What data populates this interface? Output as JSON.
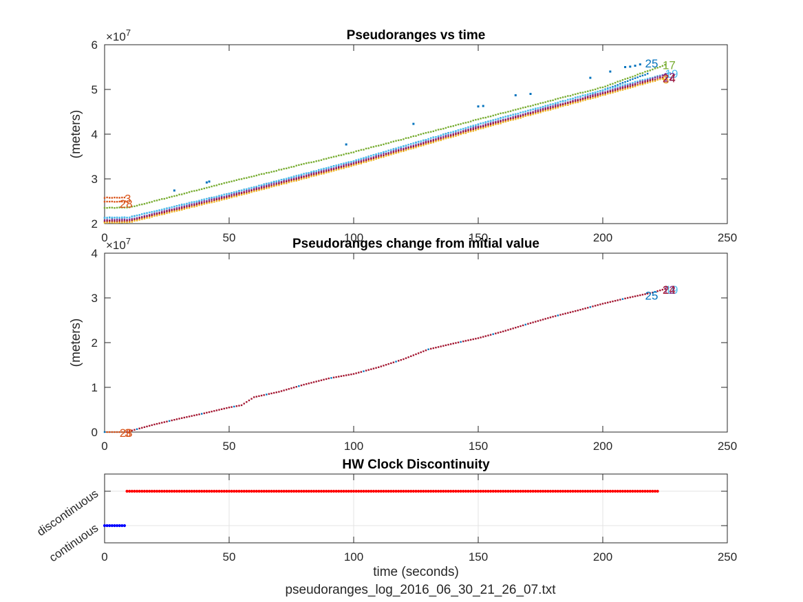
{
  "chart_data": [
    {
      "id": "top",
      "type": "scatter",
      "title": "Pseudoranges vs time",
      "xlabel": "",
      "ylabel": "(meters)",
      "y_exponent": "×10",
      "y_exponent_power": "7",
      "xlim": [
        0,
        250
      ],
      "ylim": [
        2,
        6
      ],
      "xticks": [
        0,
        50,
        100,
        150,
        200,
        250
      ],
      "yticks": [
        2,
        3,
        4,
        5,
        6
      ],
      "grid": false,
      "series": [
        {
          "name": "3",
          "color": "#D95319",
          "t_start": 0,
          "t_end": 8,
          "segments": [
            [
              0,
              2.58
            ],
            [
              8,
              2.58
            ]
          ]
        },
        {
          "name": "28",
          "color": "#D95319",
          "t_start": 0,
          "t_end": 8,
          "segments": [
            [
              0,
              2.49
            ],
            [
              8,
              2.49
            ]
          ]
        },
        {
          "name": "17",
          "color": "#77AC30",
          "t_start": 0,
          "t_end": 225,
          "segments": [
            [
              0,
              2.35
            ],
            [
              10,
              2.36
            ],
            [
              50,
              2.93
            ],
            [
              100,
              3.6
            ],
            [
              150,
              4.33
            ],
            [
              200,
              5.05
            ],
            [
              225,
              5.55
            ]
          ]
        },
        {
          "name": "25",
          "color": "#0072BD",
          "t_start": 0,
          "t_end": 218,
          "segments": [
            [
              0,
              2.13
            ],
            [
              10,
              2.14
            ],
            [
              50,
              2.67
            ],
            [
              100,
              3.4
            ],
            [
              150,
              4.22
            ],
            [
              200,
              4.98
            ],
            [
              218,
              5.35
            ]
          ]
        },
        {
          "name": "19",
          "color": "#4DBEEE",
          "t_start": 0,
          "t_end": 227,
          "segments": [
            [
              0,
              2.13
            ],
            [
              10,
              2.14
            ],
            [
              50,
              2.67
            ],
            [
              100,
              3.4
            ],
            [
              150,
              4.22
            ],
            [
              200,
              4.98
            ],
            [
              227,
              5.37
            ]
          ]
        },
        {
          "name": "12",
          "color": "#7E2F8E",
          "t_start": 0,
          "t_end": 224,
          "segments": [
            [
              0,
              2.08
            ],
            [
              10,
              2.09
            ],
            [
              50,
              2.63
            ],
            [
              100,
              3.36
            ],
            [
              150,
              4.17
            ],
            [
              200,
              4.93
            ],
            [
              224,
              5.31
            ]
          ]
        },
        {
          "name": "24",
          "color": "#A2142F",
          "t_start": 0,
          "t_end": 224,
          "segments": [
            [
              0,
              2.05
            ],
            [
              10,
              2.06
            ],
            [
              50,
              2.6
            ],
            [
              100,
              3.33
            ],
            [
              150,
              4.14
            ],
            [
              200,
              4.9
            ],
            [
              224,
              5.27
            ]
          ]
        },
        {
          "name": "6",
          "color": "#EDB120",
          "t_start": 0,
          "t_end": 224,
          "segments": [
            [
              0,
              2.02
            ],
            [
              10,
              2.03
            ],
            [
              50,
              2.57
            ],
            [
              100,
              3.3
            ],
            [
              150,
              4.11
            ],
            [
              200,
              4.87
            ],
            [
              224,
              5.24
            ]
          ]
        }
      ],
      "outliers": [
        [
          28,
          2.74
        ],
        [
          41,
          2.92
        ],
        [
          42,
          2.94
        ],
        [
          97,
          3.77
        ],
        [
          124,
          4.23
        ],
        [
          150,
          4.62
        ],
        [
          152,
          4.63
        ],
        [
          165,
          4.87
        ],
        [
          171,
          4.9
        ],
        [
          195,
          5.26
        ],
        [
          203,
          5.4
        ],
        [
          209,
          5.5
        ],
        [
          211,
          5.51
        ],
        [
          213,
          5.53
        ],
        [
          215,
          5.56
        ]
      ],
      "labels": [
        {
          "text": "3",
          "x": 8,
          "y": 2.58,
          "color": "#D95319"
        },
        {
          "text": "28",
          "x": 6,
          "y": 2.46,
          "color": "#D95319"
        },
        {
          "text": "25",
          "x": 217,
          "y": 5.6,
          "color": "#0072BD"
        },
        {
          "text": "17",
          "x": 224,
          "y": 5.56,
          "color": "#77AC30"
        },
        {
          "text": "19",
          "x": 225,
          "y": 5.37,
          "color": "#4DBEEE"
        },
        {
          "text": "12",
          "x": 224,
          "y": 5.3,
          "color": "#7E2F8E"
        },
        {
          "text": "6",
          "x": 224,
          "y": 5.24,
          "color": "#EDB120"
        },
        {
          "text": "24",
          "x": 224,
          "y": 5.27,
          "color": "#A2142F"
        }
      ]
    },
    {
      "id": "middle",
      "type": "scatter",
      "title": "Pseudoranges change from initial value",
      "xlabel": "",
      "ylabel": "(meters)",
      "y_exponent": "×10",
      "y_exponent_power": "7",
      "xlim": [
        0,
        250
      ],
      "ylim": [
        0,
        4
      ],
      "xticks": [
        0,
        50,
        100,
        150,
        200,
        250
      ],
      "yticks": [
        0,
        1,
        2,
        3,
        4
      ],
      "grid": false,
      "line": [
        [
          0,
          0
        ],
        [
          9,
          0
        ],
        [
          10,
          0.02
        ],
        [
          20,
          0.17
        ],
        [
          30,
          0.3
        ],
        [
          40,
          0.42
        ],
        [
          50,
          0.55
        ],
        [
          55,
          0.6
        ],
        [
          60,
          0.78
        ],
        [
          70,
          0.9
        ],
        [
          80,
          1.06
        ],
        [
          90,
          1.2
        ],
        [
          100,
          1.3
        ],
        [
          110,
          1.45
        ],
        [
          120,
          1.63
        ],
        [
          130,
          1.85
        ],
        [
          140,
          1.98
        ],
        [
          150,
          2.1
        ],
        [
          160,
          2.25
        ],
        [
          170,
          2.42
        ],
        [
          180,
          2.58
        ],
        [
          190,
          2.72
        ],
        [
          200,
          2.87
        ],
        [
          210,
          3.0
        ],
        [
          220,
          3.12
        ],
        [
          225,
          3.2
        ]
      ],
      "line_color": "#A2142F",
      "labels": [
        {
          "text": "3",
          "x": 8,
          "y": 0.0,
          "color": "#D95319"
        },
        {
          "text": "28",
          "x": 6,
          "y": 0.0,
          "color": "#D95319"
        },
        {
          "text": "25",
          "x": 217,
          "y": 3.07,
          "color": "#0072BD"
        },
        {
          "text": "19",
          "x": 225,
          "y": 3.2,
          "color": "#4DBEEE"
        },
        {
          "text": "12",
          "x": 224,
          "y": 3.2,
          "color": "#7E2F8E"
        },
        {
          "text": "24",
          "x": 224,
          "y": 3.2,
          "color": "#A2142F"
        }
      ]
    },
    {
      "id": "bottom",
      "type": "scatter",
      "title": "HW Clock Discontinuity",
      "xlabel": "time (seconds)",
      "ylabel": "",
      "xlim": [
        0,
        250
      ],
      "ylim": [
        -0.5,
        1.5
      ],
      "xticks": [
        0,
        50,
        100,
        150,
        200,
        250
      ],
      "ytick_values": [
        0,
        1
      ],
      "ytick_labels": [
        "continuous",
        "discontinuous"
      ],
      "grid": true,
      "series": [
        {
          "name": "continuous",
          "color": "#0000FF",
          "value": 0,
          "t_start": 0,
          "t_end": 8
        },
        {
          "name": "discontinuous",
          "color": "#FF0000",
          "value": 1,
          "t_start": 9,
          "t_end": 222
        }
      ]
    }
  ],
  "footer": {
    "filename": "pseudoranges_log_2016_06_30_21_26_07.txt"
  }
}
